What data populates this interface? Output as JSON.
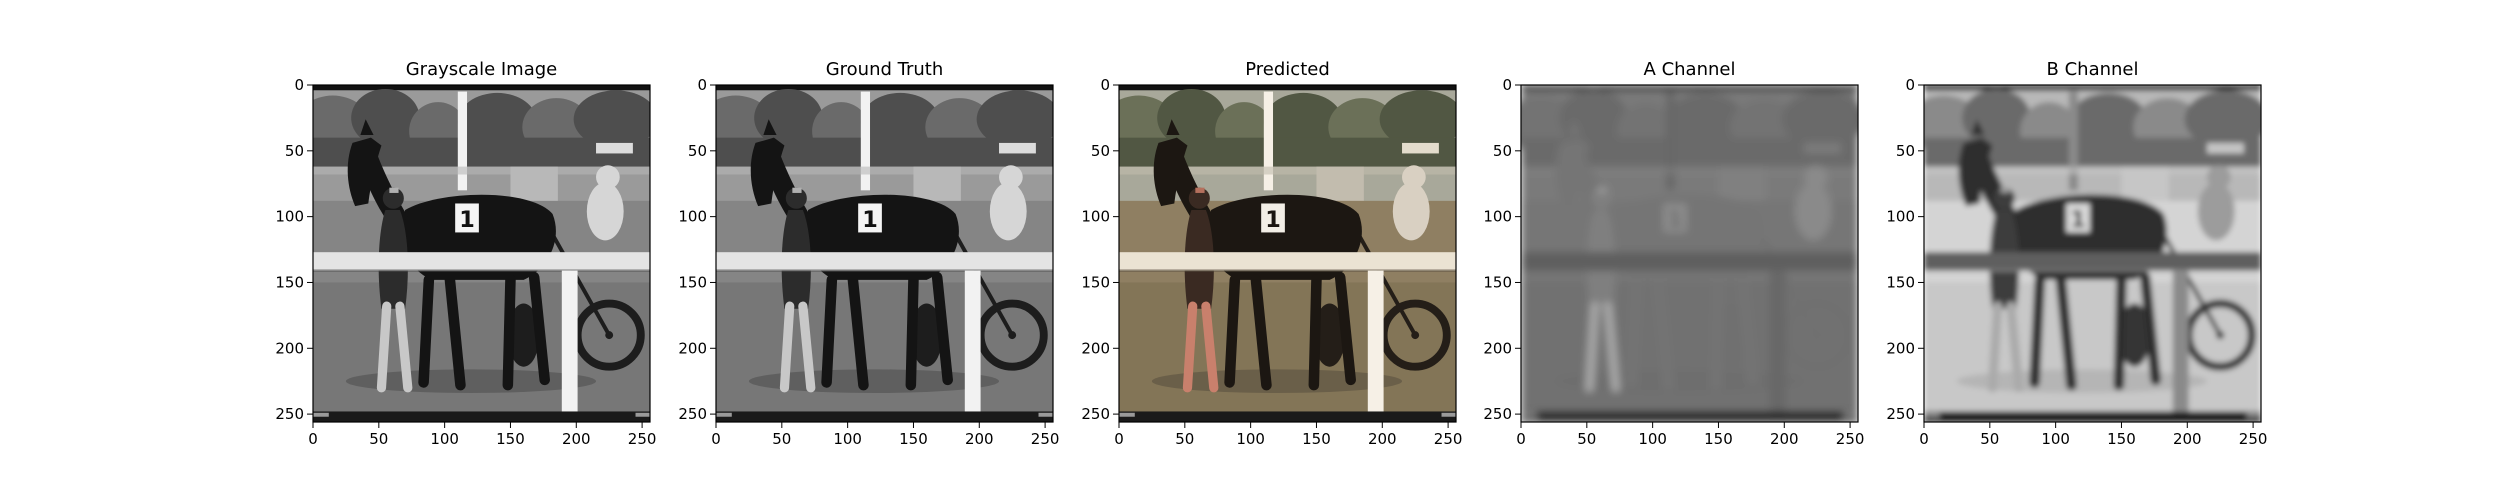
{
  "chart_data": [
    {
      "type": "image",
      "title": "Grayscale Image",
      "xlim": [
        0,
        256
      ],
      "ylim": [
        256,
        0
      ],
      "xticks": [
        0,
        50,
        100,
        150,
        200,
        250
      ],
      "yticks": [
        0,
        50,
        100,
        150,
        200,
        250
      ],
      "palette": "gray",
      "grid": false
    },
    {
      "type": "image",
      "title": "Ground Truth",
      "xlim": [
        0,
        256
      ],
      "ylim": [
        256,
        0
      ],
      "xticks": [
        0,
        50,
        100,
        150,
        200,
        250
      ],
      "yticks": [
        0,
        50,
        100,
        150,
        200,
        250
      ],
      "palette": "gray",
      "grid": false
    },
    {
      "type": "image",
      "title": "Predicted",
      "xlim": [
        0,
        256
      ],
      "ylim": [
        256,
        0
      ],
      "xticks": [
        0,
        50,
        100,
        150,
        200,
        250
      ],
      "yticks": [
        0,
        50,
        100,
        150,
        200,
        250
      ],
      "palette": "color",
      "grid": false
    },
    {
      "type": "image",
      "title": "A Channel",
      "xlim": [
        0,
        256
      ],
      "ylim": [
        256,
        0
      ],
      "xticks": [
        0,
        50,
        100,
        150,
        200,
        250
      ],
      "yticks": [
        0,
        50,
        100,
        150,
        200,
        250
      ],
      "palette": "achannel",
      "grid": false
    },
    {
      "type": "image",
      "title": "B Channel",
      "xlim": [
        0,
        256
      ],
      "ylim": [
        256,
        0
      ],
      "xticks": [
        0,
        50,
        100,
        150,
        200,
        250
      ],
      "yticks": [
        0,
        50,
        100,
        150,
        200,
        250
      ],
      "palette": "bchannel",
      "grid": false
    }
  ]
}
